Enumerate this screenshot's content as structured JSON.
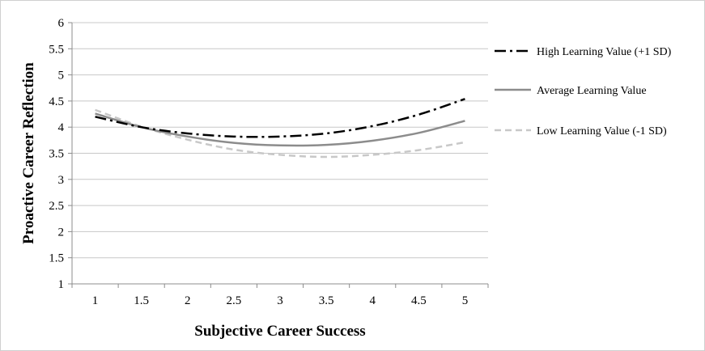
{
  "chart_data": {
    "type": "line",
    "xlabel": "Subjective Career Success",
    "ylabel": "Proactive Career Reflection",
    "xlim": [
      1,
      5
    ],
    "ylim": [
      1,
      6
    ],
    "x_ticks": [
      "1",
      "1.5",
      "2",
      "2.5",
      "3",
      "3.5",
      "4",
      "4.5",
      "5"
    ],
    "y_ticks": [
      "1",
      "1.5",
      "2",
      "2.5",
      "3",
      "3.5",
      "4",
      "4.5",
      "5",
      "5.5",
      "6"
    ],
    "grid": "horizontal",
    "legend_position": "right",
    "x": [
      1,
      1.5,
      2,
      2.5,
      3,
      3.5,
      4,
      4.5,
      5
    ],
    "series": [
      {
        "name": "High Learning Value (+1 SD)",
        "color": "#000000",
        "style": "dash-dot",
        "values": [
          4.2,
          4.0,
          3.88,
          3.82,
          3.82,
          3.88,
          4.02,
          4.24,
          4.54
        ]
      },
      {
        "name": "Average Learning Value",
        "color": "#8c8c8c",
        "style": "solid",
        "values": [
          4.26,
          4.0,
          3.82,
          3.7,
          3.65,
          3.66,
          3.74,
          3.89,
          4.12
        ]
      },
      {
        "name": "Low Learning Value (-1 SD)",
        "color": "#c8c8c8",
        "style": "dashed",
        "values": [
          4.33,
          4.01,
          3.76,
          3.57,
          3.47,
          3.43,
          3.47,
          3.56,
          3.71
        ]
      }
    ]
  }
}
